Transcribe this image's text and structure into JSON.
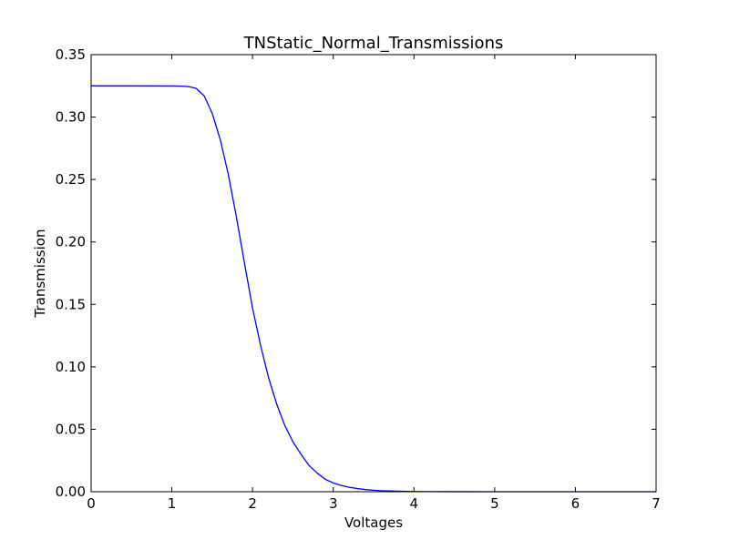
{
  "chart_data": {
    "type": "line",
    "title": "TNStatic_Normal_Transmissions",
    "xlabel": "Voltages",
    "ylabel": "Transmission",
    "xlim": [
      0,
      7
    ],
    "ylim": [
      0,
      0.35
    ],
    "xticks": [
      0,
      1,
      2,
      3,
      4,
      5,
      6,
      7
    ],
    "xtick_labels": [
      "0",
      "1",
      "2",
      "3",
      "4",
      "5",
      "6",
      "7"
    ],
    "yticks": [
      0,
      0.05,
      0.1,
      0.15,
      0.2,
      0.25,
      0.3,
      0.35
    ],
    "ytick_labels": [
      "0.00",
      "0.05",
      "0.10",
      "0.15",
      "0.20",
      "0.25",
      "0.30",
      "0.35"
    ],
    "grid": false,
    "series": [
      {
        "color": "#0000ff",
        "x": [
          0,
          0.5,
          1.0,
          1.1,
          1.2,
          1.3,
          1.4,
          1.5,
          1.6,
          1.7,
          1.8,
          1.9,
          2.0,
          2.1,
          2.2,
          2.3,
          2.4,
          2.5,
          2.6,
          2.7,
          2.8,
          2.9,
          3.0,
          3.1,
          3.2,
          3.3,
          3.4,
          3.5,
          3.6,
          3.8,
          4.0,
          4.2,
          4.5,
          5.0,
          5.5,
          6.0,
          6.5,
          7.0
        ],
        "y": [
          0.325,
          0.325,
          0.3249,
          0.3248,
          0.3245,
          0.323,
          0.317,
          0.303,
          0.282,
          0.254,
          0.22,
          0.183,
          0.147,
          0.117,
          0.091,
          0.07,
          0.053,
          0.04,
          0.03,
          0.021,
          0.015,
          0.01,
          0.007,
          0.005,
          0.0035,
          0.0025,
          0.0017,
          0.0012,
          0.0008,
          0.0004,
          0.0002,
          0.0001,
          5e-05,
          0.0,
          0.0,
          0.0,
          0.0,
          0.0
        ]
      }
    ]
  }
}
